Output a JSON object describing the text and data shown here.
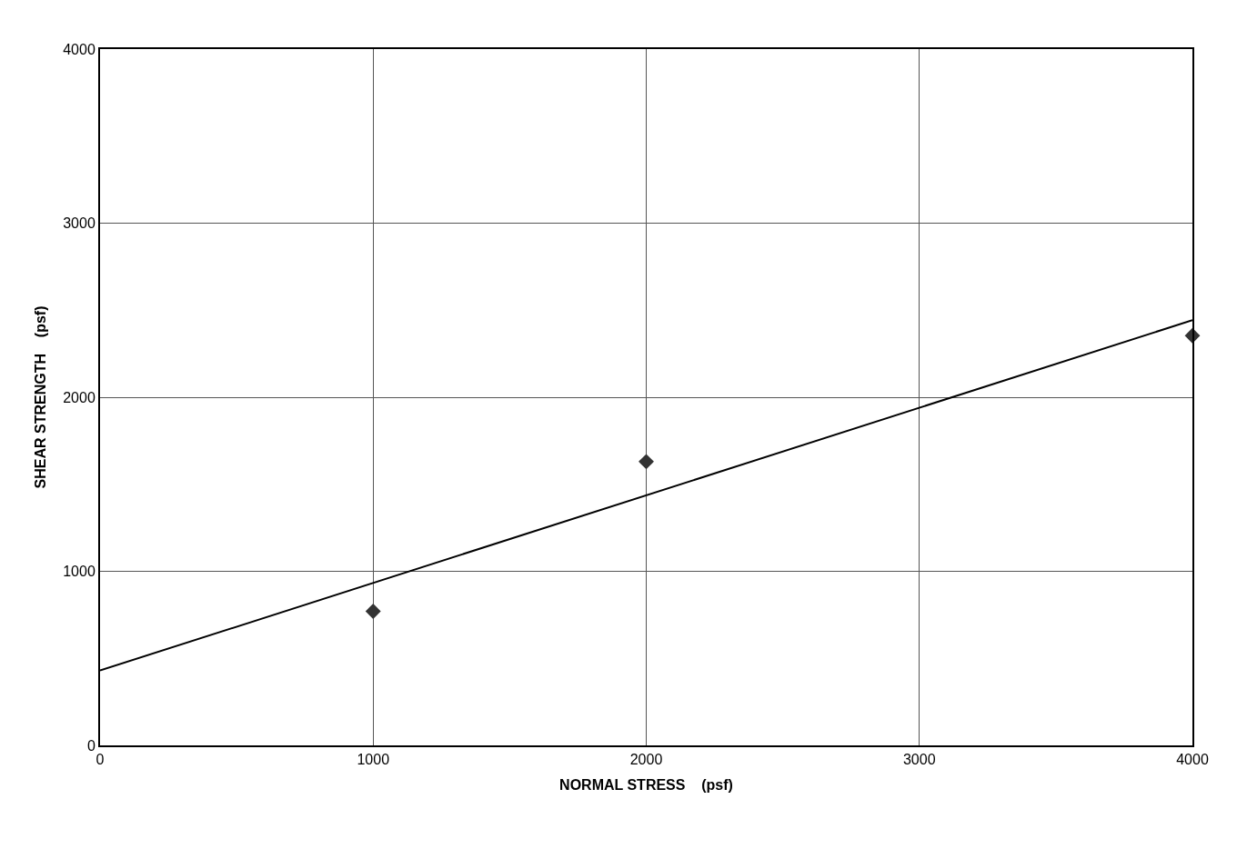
{
  "chart_data": {
    "type": "scatter",
    "xlabel": "NORMAL STRESS    (psf)",
    "ylabel": "SHEAR STRENGTH    (psf)",
    "series": [
      {
        "color": "#333333",
        "x": [
          1000,
          2000,
          4000
        ],
        "values": [
          770,
          1630,
          2354
        ],
        "marker": "diamond"
      },
      {
        "type": "line",
        "color": "#000000",
        "x": [
          0,
          4000
        ],
        "values": [
          430,
          2443
        ],
        "marker": "none",
        "line_style": "solid"
      }
    ],
    "xlim": [
      0,
      4000
    ],
    "xticks": [
      0,
      1000,
      2000,
      3000,
      4000
    ],
    "ylim": [
      0,
      4000
    ],
    "yticks": [
      0,
      1000,
      2000,
      3000,
      4000
    ],
    "grid": true,
    "legend": false
  }
}
